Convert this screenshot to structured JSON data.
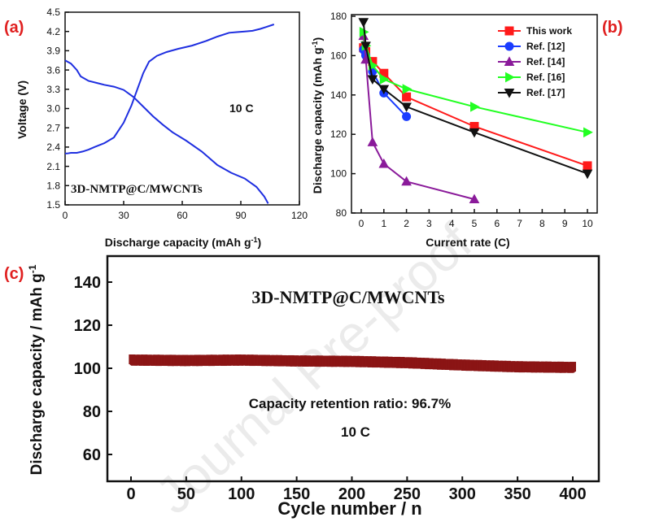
{
  "watermark": "Journal Pre-proof",
  "chart_data": [
    {
      "panel": "(a)",
      "type": "line",
      "xlabel": "Discharge capacity (mAh g",
      "xlabel_sup": "-1",
      "xlabel_close": ")",
      "ylabel": "Voltage (V)",
      "xlim": [
        0,
        120
      ],
      "ylim": [
        1.5,
        4.5
      ],
      "xticks": [
        0,
        30,
        60,
        90,
        120
      ],
      "yticks": [
        1.5,
        1.8,
        2.1,
        2.4,
        2.7,
        3.0,
        3.3,
        3.6,
        3.9,
        4.2,
        4.5
      ],
      "annotations": [
        "10 C",
        "3D-NMTP@C/MWCNTs"
      ],
      "color": "#1f2fe0",
      "series": [
        {
          "x": [
            0,
            1,
            3,
            6,
            9,
            12,
            15,
            20,
            25,
            30,
            34,
            37,
            40,
            43,
            47,
            52,
            58,
            65,
            72,
            78,
            84,
            88,
            92,
            96,
            100,
            103,
            107
          ],
          "y": [
            2.3,
            2.3,
            2.31,
            2.31,
            2.33,
            2.36,
            2.4,
            2.46,
            2.55,
            2.78,
            3.05,
            3.3,
            3.55,
            3.73,
            3.82,
            3.88,
            3.93,
            3.98,
            4.05,
            4.12,
            4.18,
            4.19,
            4.2,
            4.21,
            4.24,
            4.27,
            4.31
          ]
        },
        {
          "x": [
            0,
            3,
            6,
            8,
            12,
            16,
            20,
            25,
            30,
            35,
            40,
            45,
            50,
            55,
            62,
            70,
            78,
            85,
            92,
            98,
            102,
            104
          ],
          "y": [
            3.75,
            3.7,
            3.6,
            3.5,
            3.43,
            3.4,
            3.37,
            3.34,
            3.29,
            3.18,
            3.03,
            2.88,
            2.75,
            2.63,
            2.5,
            2.33,
            2.12,
            2.0,
            1.91,
            1.78,
            1.63,
            1.52
          ]
        }
      ]
    },
    {
      "panel": "(b)",
      "type": "line",
      "xlabel": "Current rate (C)",
      "ylabel": "Discharge capacity (mAh g",
      "ylabel_sup": "-1",
      "ylabel_close": ")",
      "xlim": [
        0,
        10
      ],
      "ylim": [
        80,
        180
      ],
      "xticks": [
        0,
        1,
        2,
        3,
        4,
        5,
        6,
        7,
        8,
        9,
        10
      ],
      "yticks": [
        80,
        100,
        120,
        140,
        160,
        180
      ],
      "legend_position": "top-right",
      "series": [
        {
          "name": "This work",
          "color": "#ff1a1a",
          "marker": "square",
          "x": [
            0.1,
            0.2,
            0.5,
            1,
            2,
            5,
            10
          ],
          "y": [
            164,
            162,
            157,
            151,
            139,
            124,
            104
          ]
        },
        {
          "name": "Ref. [12]",
          "color": "#1a3cff",
          "marker": "circle",
          "x": [
            0.1,
            0.2,
            0.5,
            1,
            2
          ],
          "y": [
            163,
            160,
            152,
            141,
            129
          ]
        },
        {
          "name": "Ref. [14]",
          "color": "#8a1a9a",
          "marker": "triangle-up",
          "x": [
            0.1,
            0.2,
            0.5,
            1,
            2,
            5
          ],
          "y": [
            170,
            158,
            116,
            105,
            96,
            87
          ]
        },
        {
          "name": "Ref. [16]",
          "color": "#22ff22",
          "marker": "triangle-right",
          "x": [
            0.1,
            0.2,
            0.5,
            1,
            2,
            5,
            10
          ],
          "y": [
            172,
            165,
            155,
            148,
            143,
            134,
            121
          ]
        },
        {
          "name": "Ref. [17]",
          "color": "#111111",
          "marker": "triangle-down",
          "x": [
            0.1,
            0.2,
            0.5,
            1,
            2,
            5,
            10
          ],
          "y": [
            177,
            165,
            148,
            143,
            134,
            121,
            100
          ]
        }
      ]
    },
    {
      "panel": "(c)",
      "type": "scatter",
      "xlabel": "Cycle number / n",
      "ylabel": "Discharge capacity / mAh g",
      "ylabel_sup": "-1",
      "xlim": [
        -10,
        410
      ],
      "ylim": [
        45,
        150
      ],
      "xticks": [
        0,
        50,
        100,
        150,
        200,
        250,
        300,
        350,
        400
      ],
      "yticks": [
        60,
        80,
        100,
        120,
        140
      ],
      "annotations": [
        "3D-NMTP@C/MWCNTs",
        "Capacity retention ratio: 96.7%",
        "10 C"
      ],
      "color": "#8b1515",
      "series": [
        {
          "x": [
            1,
            50,
            100,
            150,
            200,
            250,
            300,
            350,
            400
          ],
          "y": [
            103.8,
            103.6,
            103.8,
            103.4,
            103.2,
            102.6,
            101.5,
            100.7,
            100.4
          ]
        }
      ]
    }
  ]
}
